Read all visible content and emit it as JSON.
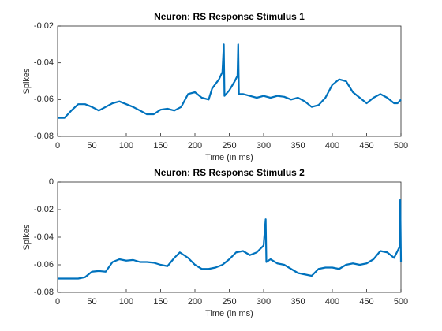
{
  "chart_data": [
    {
      "type": "line",
      "title": "Neuron: RS Response Stimulus 1",
      "xlabel": "Time (in ms)",
      "ylabel": "Spikes",
      "x": [
        0,
        10,
        20,
        30,
        40,
        50,
        60,
        70,
        80,
        90,
        100,
        110,
        120,
        130,
        140,
        150,
        160,
        170,
        180,
        190,
        200,
        210,
        220,
        225,
        235,
        240,
        242,
        243,
        250,
        258,
        262,
        263,
        264,
        270,
        280,
        290,
        300,
        310,
        320,
        330,
        340,
        350,
        360,
        370,
        380,
        390,
        400,
        410,
        420,
        430,
        440,
        450,
        460,
        470,
        480,
        490,
        495,
        500
      ],
      "series": [
        {
          "color": "#0072bd",
          "values": [
            -0.07,
            -0.07,
            -0.066,
            -0.0625,
            -0.0625,
            -0.064,
            -0.066,
            -0.064,
            -0.062,
            -0.061,
            -0.0625,
            -0.064,
            -0.066,
            -0.068,
            -0.068,
            -0.0655,
            -0.065,
            -0.066,
            -0.064,
            -0.057,
            -0.056,
            -0.059,
            -0.06,
            -0.054,
            -0.049,
            -0.045,
            -0.03,
            -0.058,
            -0.055,
            -0.05,
            -0.047,
            -0.03,
            -0.057,
            -0.057,
            -0.058,
            -0.059,
            -0.058,
            -0.059,
            -0.058,
            -0.0585,
            -0.06,
            -0.059,
            -0.061,
            -0.064,
            -0.063,
            -0.059,
            -0.052,
            -0.049,
            -0.05,
            -0.056,
            -0.059,
            -0.062,
            -0.059,
            -0.057,
            -0.059,
            -0.062,
            -0.062,
            -0.06
          ]
        }
      ],
      "xlim": [
        0,
        500
      ],
      "xticks": [
        0,
        50,
        100,
        150,
        200,
        250,
        300,
        350,
        400,
        450,
        500
      ],
      "ylim": [
        -0.08,
        -0.02
      ],
      "yticks": [
        -0.08,
        -0.06,
        -0.04,
        -0.02
      ]
    },
    {
      "type": "line",
      "title": "Neuron: RS Response Stimulus 2",
      "xlabel": "Time (in ms)",
      "ylabel": "Spikes",
      "x": [
        0,
        30,
        40,
        50,
        60,
        70,
        80,
        90,
        100,
        110,
        120,
        130,
        140,
        150,
        160,
        170,
        178,
        190,
        200,
        210,
        220,
        230,
        240,
        250,
        260,
        270,
        280,
        290,
        300,
        303,
        304,
        310,
        320,
        330,
        340,
        350,
        360,
        370,
        380,
        390,
        400,
        410,
        420,
        430,
        440,
        450,
        460,
        470,
        480,
        490,
        498,
        499,
        500
      ],
      "series": [
        {
          "color": "#0072bd",
          "values": [
            -0.07,
            -0.07,
            -0.069,
            -0.065,
            -0.0645,
            -0.065,
            -0.058,
            -0.056,
            -0.057,
            -0.0565,
            -0.058,
            -0.058,
            -0.0585,
            -0.06,
            -0.061,
            -0.055,
            -0.051,
            -0.055,
            -0.06,
            -0.063,
            -0.063,
            -0.062,
            -0.06,
            -0.056,
            -0.051,
            -0.05,
            -0.053,
            -0.051,
            -0.046,
            -0.027,
            -0.058,
            -0.056,
            -0.059,
            -0.06,
            -0.063,
            -0.066,
            -0.067,
            -0.068,
            -0.063,
            -0.062,
            -0.062,
            -0.063,
            -0.06,
            -0.059,
            -0.06,
            -0.059,
            -0.056,
            -0.05,
            -0.051,
            -0.055,
            -0.047,
            -0.013,
            -0.058
          ]
        }
      ],
      "xlim": [
        0,
        500
      ],
      "xticks": [
        0,
        50,
        100,
        150,
        200,
        250,
        300,
        350,
        400,
        450,
        500
      ],
      "ylim": [
        -0.08,
        0
      ],
      "yticks": [
        -0.08,
        -0.06,
        -0.04,
        -0.02,
        0
      ]
    }
  ]
}
